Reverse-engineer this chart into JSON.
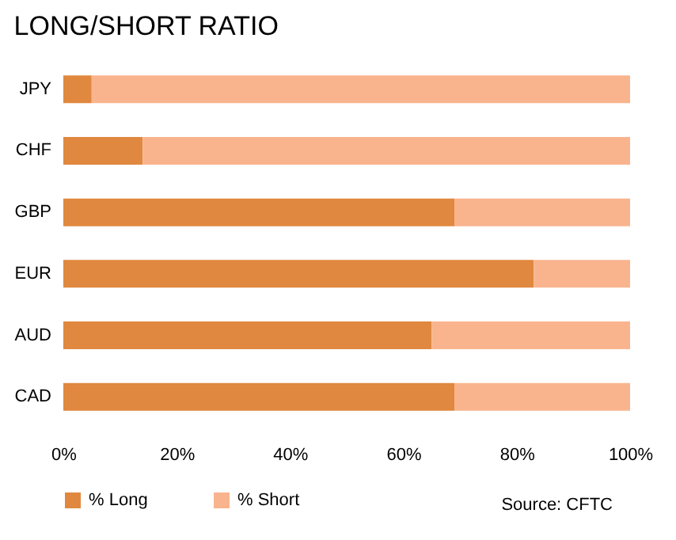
{
  "chart_data": {
    "type": "bar",
    "title": "LONG/SHORT RATIO",
    "orientation": "horizontal",
    "stacked": true,
    "categories": [
      "JPY",
      "CHF",
      "GBP",
      "EUR",
      "AUD",
      "CAD"
    ],
    "series": [
      {
        "name": "% Long",
        "color": "#e0883f",
        "values": [
          5,
          14,
          69,
          83,
          65,
          69
        ]
      },
      {
        "name": "% Short",
        "color": "#f9b48e",
        "values": [
          95,
          86,
          31,
          17,
          35,
          31
        ]
      }
    ],
    "xlim": [
      0,
      100
    ],
    "xticks": [
      {
        "value": 0,
        "label": "0%"
      },
      {
        "value": 20,
        "label": "20%"
      },
      {
        "value": 40,
        "label": "40%"
      },
      {
        "value": 60,
        "label": "60%"
      },
      {
        "value": 80,
        "label": "80%"
      },
      {
        "value": 100,
        "label": "100%"
      }
    ],
    "grid": false,
    "legend": "bottom left",
    "annotations": [
      "Source: CFTC"
    ]
  }
}
